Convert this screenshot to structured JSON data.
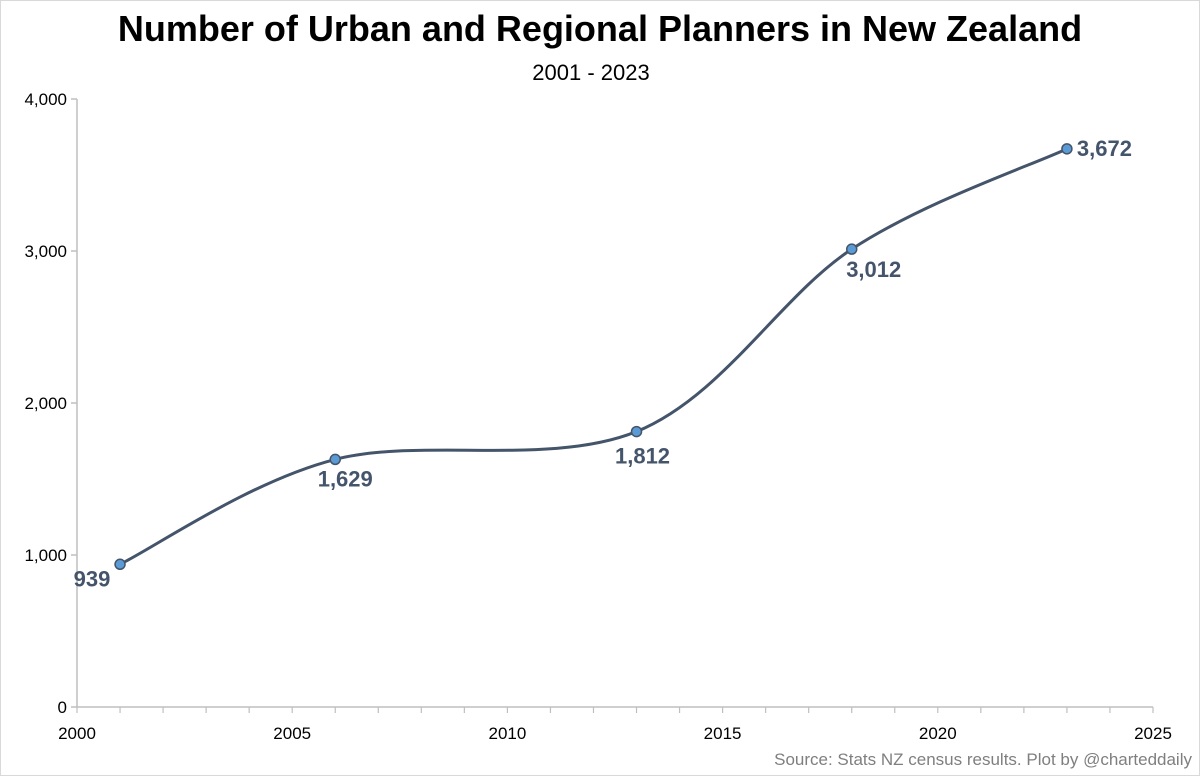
{
  "chart_data": {
    "type": "line",
    "title": "Number of Urban and Regional Planners in New Zealand",
    "subtitle": "2001 - 2023",
    "xlabel": "",
    "ylabel": "",
    "xlim": [
      2000,
      2025
    ],
    "ylim": [
      0,
      4000
    ],
    "x_ticks": [
      2000,
      2005,
      2010,
      2015,
      2020,
      2025
    ],
    "x_tick_labels": [
      "2000",
      "2005",
      "2010",
      "2015",
      "2020",
      "2025"
    ],
    "y_ticks": [
      0,
      1000,
      2000,
      3000,
      4000
    ],
    "y_tick_labels": [
      "0",
      "1,000",
      "2,000",
      "3,000",
      "4,000"
    ],
    "grid": false,
    "smoothed": true,
    "series": [
      {
        "x": [
          2001,
          2006,
          2013,
          2018,
          2023
        ],
        "values": [
          939,
          1629,
          1812,
          3012,
          3672
        ],
        "labels": [
          "939",
          "1,629",
          "1,812",
          "3,012",
          "3,672"
        ],
        "color": "#44546a",
        "marker_color": "#5b9bd5"
      }
    ],
    "source": "Source: Stats NZ census results.  Plot by @charteddaily"
  }
}
